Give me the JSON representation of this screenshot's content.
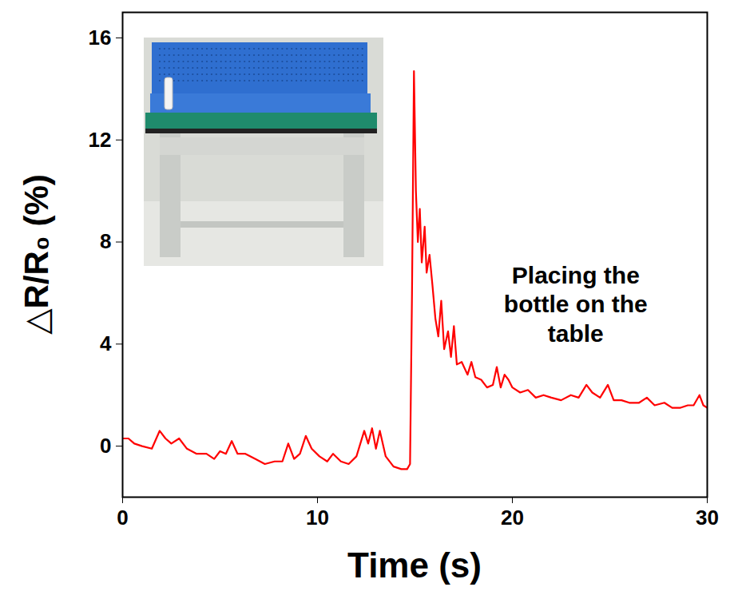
{
  "chart_data": {
    "type": "line",
    "xlabel": "Time (s)",
    "ylabel": "△R/R₀ (%)",
    "annotations": [
      {
        "text": "Placing the\nbottle on the\ntable"
      }
    ],
    "color": "#ff0000",
    "xlim": [
      0,
      30
    ],
    "xticks": [
      0,
      10,
      20,
      30
    ],
    "ylim": [
      -2,
      17
    ],
    "yticks": [
      0,
      4,
      8,
      12,
      16
    ],
    "grid": false,
    "x": [
      0,
      0.3,
      0.6,
      1,
      1.5,
      1.9,
      2.2,
      2.5,
      2.9,
      3.3,
      3.8,
      4.3,
      4.7,
      5.0,
      5.3,
      5.6,
      5.9,
      6.3,
      6.8,
      7.3,
      7.8,
      8.2,
      8.5,
      8.8,
      9.1,
      9.4,
      9.7,
      10.1,
      10.5,
      10.8,
      11.2,
      11.6,
      12.0,
      12.4,
      12.6,
      12.8,
      13.0,
      13.2,
      13.5,
      13.9,
      14.3,
      14.6,
      14.75,
      14.85,
      14.95,
      15.05,
      15.15,
      15.25,
      15.35,
      15.5,
      15.6,
      15.75,
      15.9,
      16.05,
      16.2,
      16.35,
      16.5,
      16.7,
      16.85,
      17.0,
      17.15,
      17.4,
      17.7,
      17.9,
      18.1,
      18.4,
      18.7,
      19.0,
      19.2,
      19.4,
      19.6,
      19.8,
      20.0,
      20.4,
      20.8,
      21.2,
      21.6,
      22.0,
      22.5,
      23.0,
      23.4,
      23.8,
      24.1,
      24.5,
      24.9,
      25.2,
      25.6,
      26.0,
      26.5,
      26.9,
      27.3,
      27.8,
      28.2,
      28.6,
      29.0,
      29.3,
      29.6,
      29.8,
      30
    ],
    "values": [
      0.3,
      0.3,
      0.1,
      0.0,
      -0.1,
      0.6,
      0.3,
      0.1,
      0.3,
      -0.1,
      -0.3,
      -0.3,
      -0.5,
      -0.2,
      -0.3,
      0.2,
      -0.3,
      -0.3,
      -0.5,
      -0.7,
      -0.6,
      -0.6,
      0.1,
      -0.5,
      -0.3,
      0.4,
      -0.1,
      -0.4,
      -0.6,
      -0.3,
      -0.6,
      -0.7,
      -0.4,
      0.6,
      0.1,
      0.7,
      -0.1,
      0.6,
      -0.4,
      -0.8,
      -0.9,
      -0.9,
      -0.7,
      6,
      14.7,
      10,
      8,
      9.3,
      7.2,
      8.6,
      6.8,
      7.5,
      6.3,
      5.0,
      4.3,
      5.7,
      3.8,
      4.5,
      3.5,
      4.7,
      3.2,
      3.3,
      2.8,
      3.3,
      2.7,
      2.6,
      2.3,
      2.4,
      3.1,
      2.3,
      2.8,
      2.6,
      2.3,
      2.1,
      2.2,
      1.9,
      2.0,
      1.9,
      1.8,
      2.0,
      1.9,
      2.4,
      2.1,
      1.9,
      2.4,
      1.8,
      1.8,
      1.7,
      1.7,
      1.9,
      1.6,
      1.7,
      1.5,
      1.5,
      1.6,
      1.6,
      2.0,
      1.6,
      1.5
    ]
  }
}
